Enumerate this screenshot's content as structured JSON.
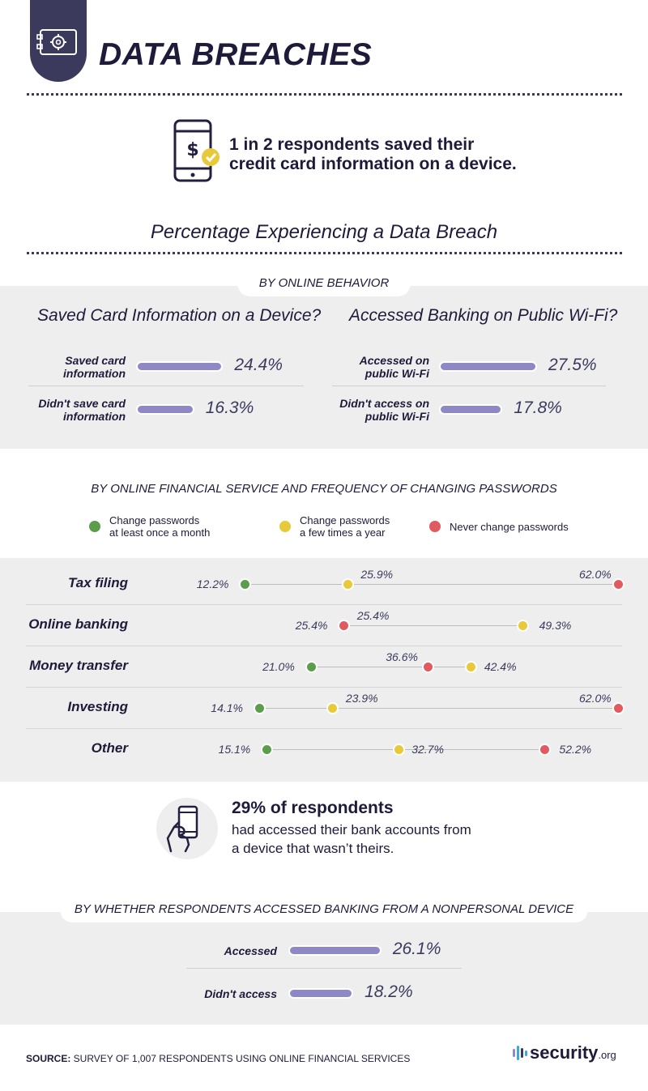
{
  "header": {
    "title": "DATA BREACHES"
  },
  "stat_saved": {
    "text_line1": "1 in 2 respondents saved their",
    "text_line2": "credit card information on a device."
  },
  "section_title": "Percentage Experiencing a Data Breach",
  "colors": {
    "bar": "#8e89c4",
    "green": "#5a9e4b",
    "yellow": "#e8c93a",
    "red": "#e05a5f",
    "navy": "#3b3a5c"
  },
  "chart_data": [
    {
      "type": "bar",
      "group": "BY ONLINE BEHAVIOR",
      "title": "Saved Card Information on a Device?",
      "categories": [
        "Saved card information",
        "Didn't save card information"
      ],
      "label_lines": [
        [
          "Saved card",
          "information"
        ],
        [
          "Didn't save card",
          "information"
        ]
      ],
      "values": [
        24.4,
        16.3
      ],
      "value_labels": [
        "24.4%",
        "16.3%"
      ],
      "unit": "%"
    },
    {
      "type": "bar",
      "group": "BY ONLINE BEHAVIOR",
      "title": "Accessed Banking on Public Wi-Fi?",
      "categories": [
        "Accessed on public Wi-Fi",
        "Didn't access on public Wi-Fi"
      ],
      "label_lines": [
        [
          "Accessed on",
          "public Wi-Fi"
        ],
        [
          "Didn't access on",
          "public Wi-Fi"
        ]
      ],
      "values": [
        27.5,
        17.8
      ],
      "value_labels": [
        "27.5%",
        "17.8%"
      ],
      "unit": "%"
    },
    {
      "type": "scatter",
      "group": "BY ONLINE FINANCIAL SERVICE AND FREQUENCY OF CHANGING PASSWORDS",
      "legend": [
        {
          "name": "Change passwords at least once a month",
          "lines": [
            "Change passwords",
            "at least once a month"
          ],
          "color": "#5a9e4b"
        },
        {
          "name": "Change passwords a few times a year",
          "lines": [
            "Change passwords",
            "a few times a year"
          ],
          "color": "#e8c93a"
        },
        {
          "name": "Never change passwords",
          "lines": [
            "Never change passwords"
          ],
          "color": "#e05a5f"
        }
      ],
      "categories": [
        "Tax filing",
        "Online banking",
        "Money transfer",
        "Investing",
        "Other"
      ],
      "series": [
        {
          "name": "Change passwords at least once a month",
          "values": [
            12.2,
            null,
            21.0,
            14.1,
            15.1
          ],
          "labels": [
            "12.2%",
            null,
            "21.0%",
            "14.1%",
            "15.1%"
          ]
        },
        {
          "name": "Change passwords a few times a year",
          "values": [
            25.9,
            49.3,
            42.4,
            23.9,
            32.7
          ],
          "labels": [
            "25.9%",
            "49.3%",
            "42.4%",
            "23.9%",
            "32.7%"
          ]
        },
        {
          "name": "Never change passwords",
          "values": [
            62.0,
            25.4,
            36.6,
            62.0,
            52.2
          ],
          "labels": [
            "62.0%",
            "25.4%",
            "36.6%",
            "62.0%",
            "52.2%"
          ]
        }
      ],
      "extra_labels": [
        {
          "category": "Online banking",
          "text": "25.4%"
        }
      ],
      "xlim": [
        0,
        62
      ],
      "unit": "%"
    },
    {
      "type": "bar",
      "group": "BY WHETHER RESPONDENTS ACCESSED BANKING FROM A NONPERSONAL DEVICE",
      "title": "",
      "categories": [
        "Accessed",
        "Didn't access"
      ],
      "label_lines": [
        [
          "Accessed"
        ],
        [
          "Didn't access"
        ]
      ],
      "values": [
        26.1,
        18.2
      ],
      "value_labels": [
        "26.1%",
        "18.2%"
      ],
      "unit": "%"
    }
  ],
  "stat_device": {
    "bold": "29% of respondents",
    "line1": "had accessed their bank accounts from",
    "line2": "a device that wasn’t theirs."
  },
  "footer": {
    "source_label": "SOURCE:",
    "source_text": " SURVEY OF 1,007 RESPONDENTS USING ONLINE FINANCIAL SERVICES",
    "logo_main": "security",
    "logo_suffix": ".org"
  }
}
